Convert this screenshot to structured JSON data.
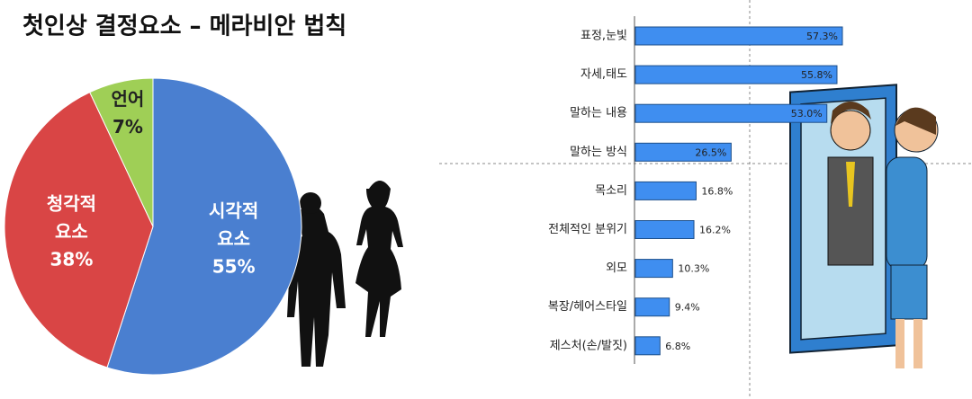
{
  "chart_data": [
    {
      "type": "pie",
      "title": "첫인상 결정요소 – 메라비안 법칙",
      "categories": [
        "시각적 요소",
        "청각적 요소",
        "언어"
      ],
      "values": [
        55,
        38,
        7
      ],
      "value_labels": [
        "55%",
        "38%",
        "7%"
      ],
      "colors": [
        "#4a7fd0",
        "#d94545",
        "#9fcf56"
      ]
    },
    {
      "type": "hbar",
      "categories": [
        "표정,눈빛",
        "자세,태도",
        "말하는 내용",
        "말하는 방식",
        "목소리",
        "전체적인 분위기",
        "외모",
        "복장/헤어스타일",
        "제스처(손/발짓)"
      ],
      "values": [
        57.3,
        55.8,
        53.0,
        26.5,
        16.8,
        16.2,
        10.3,
        9.4,
        6.8
      ],
      "value_labels": [
        "57.3%",
        "55.8%",
        "53.0%",
        "26.5%",
        "16.8%",
        "16.2%",
        "10.3%",
        "9.4%",
        "6.8%"
      ],
      "color": "#3f8ef0"
    }
  ]
}
